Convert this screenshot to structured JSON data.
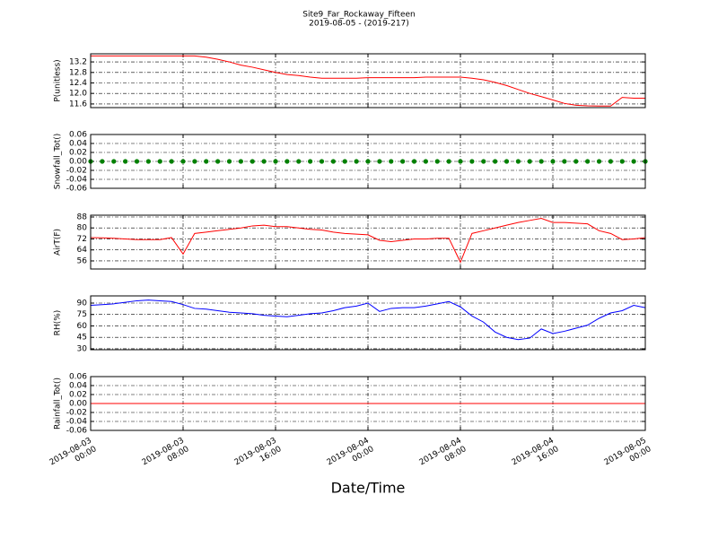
{
  "figure": {
    "title": "Site9_Far_Rockaway_Fifteen",
    "subtitle": "2019-08-05 - (2019-217)",
    "xlabel": "Date/Time",
    "xlim": [
      "2019-08-03 00:00",
      "2019-08-05 00:00"
    ],
    "xticks": [
      "2019-08-03 00:00",
      "2019-08-03 08:00",
      "2019-08-03 16:00",
      "2019-08-04 00:00",
      "2019-08-04 08:00",
      "2019-08-04 16:00",
      "2019-08-05 00:00"
    ],
    "x": [
      "2019-08-03 00:00",
      "2019-08-03 01:00",
      "2019-08-03 02:00",
      "2019-08-03 03:00",
      "2019-08-03 04:00",
      "2019-08-03 05:00",
      "2019-08-03 06:00",
      "2019-08-03 07:00",
      "2019-08-03 08:00",
      "2019-08-03 09:00",
      "2019-08-03 10:00",
      "2019-08-03 11:00",
      "2019-08-03 12:00",
      "2019-08-03 13:00",
      "2019-08-03 14:00",
      "2019-08-03 15:00",
      "2019-08-03 16:00",
      "2019-08-03 17:00",
      "2019-08-03 18:00",
      "2019-08-03 19:00",
      "2019-08-03 20:00",
      "2019-08-03 21:00",
      "2019-08-03 22:00",
      "2019-08-03 23:00",
      "2019-08-04 00:00",
      "2019-08-04 01:00",
      "2019-08-04 02:00",
      "2019-08-04 03:00",
      "2019-08-04 04:00",
      "2019-08-04 05:00",
      "2019-08-04 06:00",
      "2019-08-04 07:00",
      "2019-08-04 08:00",
      "2019-08-04 09:00",
      "2019-08-04 10:00",
      "2019-08-04 11:00",
      "2019-08-04 12:00",
      "2019-08-04 13:00",
      "2019-08-04 14:00",
      "2019-08-04 15:00",
      "2019-08-04 16:00",
      "2019-08-04 17:00",
      "2019-08-04 18:00",
      "2019-08-04 19:00",
      "2019-08-04 20:00",
      "2019-08-04 21:00",
      "2019-08-04 22:00",
      "2019-08-04 23:00",
      "2019-08-05 00:00"
    ]
  },
  "chart_data": [
    {
      "type": "line",
      "ylabel": "P(unitless)",
      "ylim": [
        11.46,
        13.51
      ],
      "yticks": [
        11.6,
        {
          "value": 12,
          "label": "12.0"
        },
        12.4,
        12.8,
        13.2
      ],
      "grid": true,
      "series": [
        {
          "color": "#ff0000",
          "values": [
            13.43,
            13.43,
            13.43,
            13.43,
            13.43,
            13.43,
            13.43,
            13.43,
            13.43,
            13.43,
            13.38,
            13.3,
            13.2,
            13.08,
            13.0,
            12.9,
            12.8,
            12.72,
            12.68,
            12.62,
            12.58,
            12.58,
            12.58,
            12.58,
            12.6,
            12.6,
            12.6,
            12.6,
            12.6,
            12.62,
            12.62,
            12.62,
            12.62,
            12.58,
            12.52,
            12.42,
            12.3,
            12.15,
            12.0,
            11.88,
            11.75,
            11.62,
            11.55,
            11.53,
            11.52,
            11.52,
            11.85,
            11.82,
            11.82
          ]
        }
      ]
    },
    {
      "type": "line",
      "ylabel": "Snowfall_Tot()",
      "ylim": [
        -0.06,
        0.06
      ],
      "yticks": [
        -0.06,
        -0.04,
        -0.02,
        {
          "value": 0,
          "label": "0.00"
        },
        0.02,
        0.04,
        0.06
      ],
      "grid": true,
      "series": [
        {
          "color": "#008000",
          "marker": "o",
          "values": [
            0,
            0,
            0,
            0,
            0,
            0,
            0,
            0,
            0,
            0,
            0,
            0,
            0,
            0,
            0,
            0,
            0,
            0,
            0,
            0,
            0,
            0,
            0,
            0,
            0,
            0,
            0,
            0,
            0,
            0,
            0,
            0,
            0,
            0,
            0,
            0,
            0,
            0,
            0,
            0,
            0,
            0,
            0,
            0,
            0,
            0,
            0,
            0,
            0
          ]
        }
      ]
    },
    {
      "type": "line",
      "ylabel": "AirT(F)",
      "ylim": [
        50.1,
        89.3
      ],
      "yticks": [
        56,
        64,
        72,
        80,
        88
      ],
      "grid": true,
      "series": [
        {
          "color": "#ff0000",
          "values": [
            73,
            72.8,
            72.5,
            72,
            71.5,
            71.5,
            71.5,
            73,
            61,
            76,
            77,
            78,
            79,
            80,
            81.5,
            82,
            81,
            81,
            80,
            79,
            78.5,
            77,
            76,
            75.5,
            75,
            71,
            70,
            71,
            72,
            72,
            72.5,
            72.5,
            55,
            76,
            78,
            80,
            82,
            84,
            85.5,
            87,
            84,
            84,
            83.5,
            83,
            78,
            76,
            71.5,
            72,
            73
          ]
        }
      ]
    },
    {
      "type": "line",
      "ylabel": "RH(%)",
      "ylim": [
        28.8,
        99.4
      ],
      "yticks": [
        30,
        45,
        60,
        75,
        90
      ],
      "grid": true,
      "series": [
        {
          "color": "#0000ff",
          "values": [
            87,
            88,
            89,
            91,
            93,
            94,
            93,
            92,
            88,
            83,
            82,
            80,
            78,
            77,
            76,
            74,
            73,
            72,
            74,
            76,
            77,
            80,
            84,
            86,
            90,
            79,
            83,
            84,
            84,
            86,
            89,
            92,
            85,
            73,
            65,
            52,
            45,
            42,
            44,
            56,
            50,
            53,
            57,
            61,
            70,
            77,
            80,
            87,
            84
          ]
        }
      ]
    },
    {
      "type": "line",
      "ylabel": "Rainfall_Tot()",
      "ylim": [
        -0.06,
        0.06
      ],
      "yticks": [
        -0.06,
        -0.04,
        -0.02,
        {
          "value": 0,
          "label": "0.00"
        },
        0.02,
        0.04,
        0.06
      ],
      "grid": true,
      "series": [
        {
          "color": "#ff0000",
          "values": [
            0,
            0,
            0,
            0,
            0,
            0,
            0,
            0,
            0,
            0,
            0,
            0,
            0,
            0,
            0,
            0,
            0,
            0,
            0,
            0,
            0,
            0,
            0,
            0,
            0,
            0,
            0,
            0,
            0,
            0,
            0,
            0,
            0,
            0,
            0,
            0,
            0,
            0,
            0,
            0,
            0,
            0,
            0,
            0,
            0,
            0,
            0,
            0,
            0
          ]
        }
      ]
    }
  ]
}
